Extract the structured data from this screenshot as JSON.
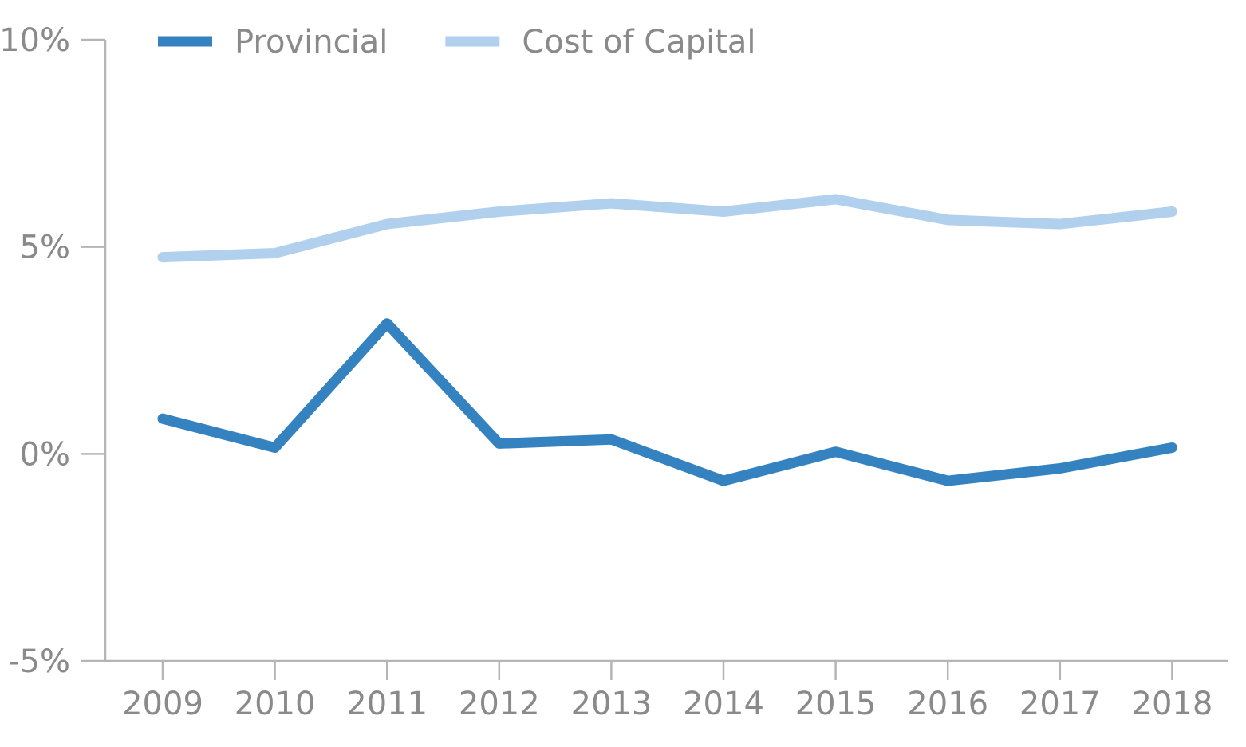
{
  "chart_data": {
    "type": "line",
    "categories": [
      "2009",
      "2010",
      "2011",
      "2012",
      "2013",
      "2014",
      "2015",
      "2016",
      "2017",
      "2018"
    ],
    "series": [
      {
        "name": "Provincial",
        "color": "#3582c0",
        "values": [
          0.85,
          0.15,
          3.15,
          0.25,
          0.35,
          -0.65,
          0.05,
          -0.65,
          -0.35,
          0.15
        ]
      },
      {
        "name": "Cost of Capital",
        "color": "#b0d0ee",
        "values": [
          4.75,
          4.85,
          5.55,
          5.85,
          6.05,
          5.85,
          6.15,
          5.65,
          5.55,
          5.85
        ]
      }
    ],
    "ylim": [
      -5,
      10
    ],
    "yticks": [
      -5,
      0,
      5,
      10
    ],
    "ytick_labels": [
      "-5%",
      "0%",
      "5%",
      "10%"
    ],
    "title": "",
    "xlabel": "",
    "ylabel": "",
    "grid": false,
    "legend_position": "top-left"
  }
}
